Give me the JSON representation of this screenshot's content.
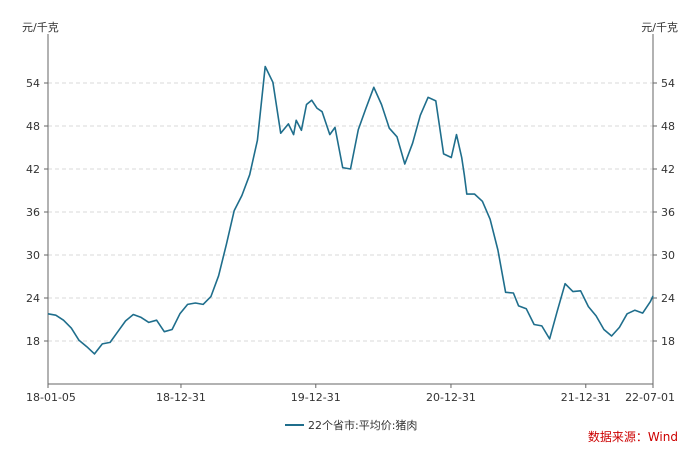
{
  "chart_data": {
    "type": "line",
    "unit_left": "元/千克",
    "unit_right": "元/千克",
    "ylim": [
      12,
      60
    ],
    "yticks": [
      18,
      24,
      30,
      36,
      42,
      48,
      54
    ],
    "xlim": [
      "2018-01-05",
      "2022-07-01"
    ],
    "xtick_labels": [
      "18-01-05",
      "18-12-31",
      "19-12-31",
      "20-12-31",
      "21-12-31",
      "22-07-01"
    ],
    "xtick_dates": [
      "2018-01-05",
      "2018-12-31",
      "2019-12-31",
      "2020-12-31",
      "2021-12-31",
      "2022-07-01"
    ],
    "grid": "horizontal-dashed",
    "legend_position": "bottom-center",
    "series": [
      {
        "name": "22个省市:平均价:猪肉",
        "color": "#1f6e8c",
        "x": [
          "2018-01-05",
          "2018-01-26",
          "2018-02-16",
          "2018-03-09",
          "2018-03-30",
          "2018-04-20",
          "2018-05-11",
          "2018-06-01",
          "2018-06-22",
          "2018-07-13",
          "2018-08-03",
          "2018-08-24",
          "2018-09-14",
          "2018-10-05",
          "2018-10-26",
          "2018-11-16",
          "2018-12-07",
          "2018-12-28",
          "2019-01-18",
          "2019-02-08",
          "2019-03-01",
          "2019-03-22",
          "2019-04-12",
          "2019-05-03",
          "2019-05-24",
          "2019-06-14",
          "2019-07-05",
          "2019-07-26",
          "2019-08-16",
          "2019-09-06",
          "2019-09-27",
          "2019-10-18",
          "2019-11-01",
          "2019-11-08",
          "2019-11-22",
          "2019-12-06",
          "2019-12-20",
          "2020-01-03",
          "2020-01-17",
          "2020-02-07",
          "2020-02-21",
          "2020-03-13",
          "2020-04-03",
          "2020-04-24",
          "2020-05-15",
          "2020-06-05",
          "2020-06-26",
          "2020-07-17",
          "2020-08-07",
          "2020-08-28",
          "2020-09-18",
          "2020-10-09",
          "2020-10-30",
          "2020-11-20",
          "2020-12-11",
          "2021-01-01",
          "2021-01-15",
          "2021-01-29",
          "2021-02-05",
          "2021-02-12",
          "2021-03-05",
          "2021-03-26",
          "2021-04-16",
          "2021-05-07",
          "2021-05-28",
          "2021-06-18",
          "2021-07-02",
          "2021-07-23",
          "2021-08-13",
          "2021-09-03",
          "2021-09-24",
          "2021-10-15",
          "2021-11-05",
          "2021-11-26",
          "2021-12-17",
          "2022-01-07",
          "2022-01-28",
          "2022-02-18",
          "2022-03-11",
          "2022-04-01",
          "2022-04-22",
          "2022-05-13",
          "2022-06-03",
          "2022-06-24",
          "2022-07-01"
        ],
        "y": [
          21.8,
          21.6,
          20.9,
          19.8,
          18.1,
          17.2,
          16.2,
          17.6,
          17.8,
          19.3,
          20.8,
          21.7,
          21.3,
          20.6,
          20.9,
          19.3,
          19.6,
          21.8,
          23.1,
          23.3,
          23.1,
          24.2,
          27.1,
          31.5,
          36.2,
          38.3,
          41.2,
          46.0,
          56.3,
          54.1,
          47.0,
          48.3,
          46.8,
          48.8,
          47.4,
          51.0,
          51.6,
          50.5,
          50.0,
          46.8,
          47.8,
          42.2,
          42.0,
          47.5,
          50.5,
          53.4,
          51.0,
          47.7,
          46.5,
          42.7,
          45.6,
          49.5,
          52.0,
          51.5,
          44.1,
          43.6,
          46.8,
          43.6,
          41.2,
          38.5,
          38.5,
          37.5,
          35.0,
          30.7,
          24.8,
          24.7,
          22.9,
          22.5,
          20.3,
          20.1,
          18.3,
          22.2,
          26.0,
          24.9,
          25.0,
          22.8,
          21.5,
          19.6,
          18.7,
          19.9,
          21.8,
          22.3,
          21.9,
          23.5,
          24.3
        ]
      }
    ]
  },
  "source_text": "数据来源：Wind"
}
